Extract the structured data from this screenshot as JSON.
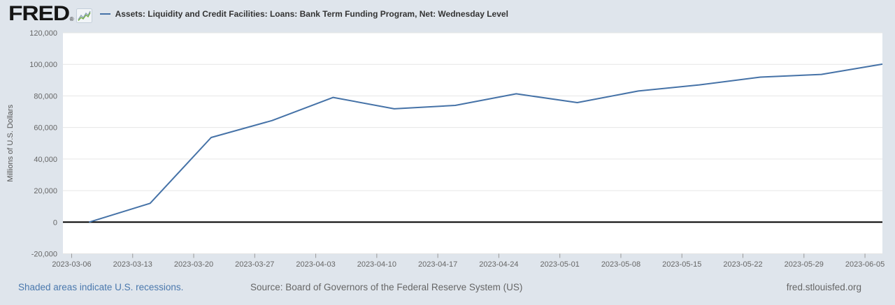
{
  "header": {
    "logo_text": "FRED",
    "reg_mark": "®",
    "series_label": "Assets: Liquidity and Credit Facilities: Loans: Bank Term Funding Program, Net: Wednesday Level"
  },
  "footer": {
    "recessions_note": "Shaded areas indicate U.S. recessions.",
    "source": "Source: Board of Governors of the Federal Reserve System (US)",
    "site": "fred.stlouisfed.org"
  },
  "icons": {
    "logo_sparkline": "sparkline-icon",
    "legend_swatch": "line-swatch"
  },
  "colors": {
    "page_bg": "#dfe5ec",
    "plot_bg": "#ffffff",
    "line": "#4572a7",
    "zero_line": "#000000",
    "gridline": "#e6e6e6",
    "axis_text": "#666666",
    "title_text": "#333333",
    "link": "#4a78ad",
    "footer_text": "#666666",
    "tick_mark": "#999999"
  },
  "chart_data": {
    "type": "line",
    "title": "Assets: Liquidity and Credit Facilities: Loans: Bank Term Funding Program, Net: Wednesday Level",
    "xlabel": "",
    "ylabel": "Millions of U.S. Dollars",
    "series": [
      {
        "name": "Assets: Liquidity and Credit Facilities: Loans: Bank Term Funding Program, Net: Wednesday Level",
        "x": [
          "2023-03-08",
          "2023-03-15",
          "2023-03-22",
          "2023-03-29",
          "2023-04-05",
          "2023-04-12",
          "2023-04-19",
          "2023-04-26",
          "2023-05-03",
          "2023-05-10",
          "2023-05-17",
          "2023-05-24",
          "2023-05-31",
          "2023-06-07"
        ],
        "values": [
          0,
          11943,
          53669,
          64403,
          79021,
          71837,
          73982,
          81327,
          75778,
          83101,
          87006,
          91907,
          93615,
          100161
        ]
      }
    ],
    "ylim": [
      -20000,
      120000
    ],
    "ytick_step": 20000,
    "x_ticks": [
      "2023-03-06",
      "2023-03-13",
      "2023-03-20",
      "2023-03-27",
      "2023-04-03",
      "2023-04-10",
      "2023-04-17",
      "2023-04-24",
      "2023-05-01",
      "2023-05-08",
      "2023-05-15",
      "2023-05-22",
      "2023-05-29",
      "2023-06-05"
    ],
    "x_range": [
      "2023-03-05",
      "2023-06-07"
    ],
    "grid": true,
    "legend_position": "top"
  }
}
